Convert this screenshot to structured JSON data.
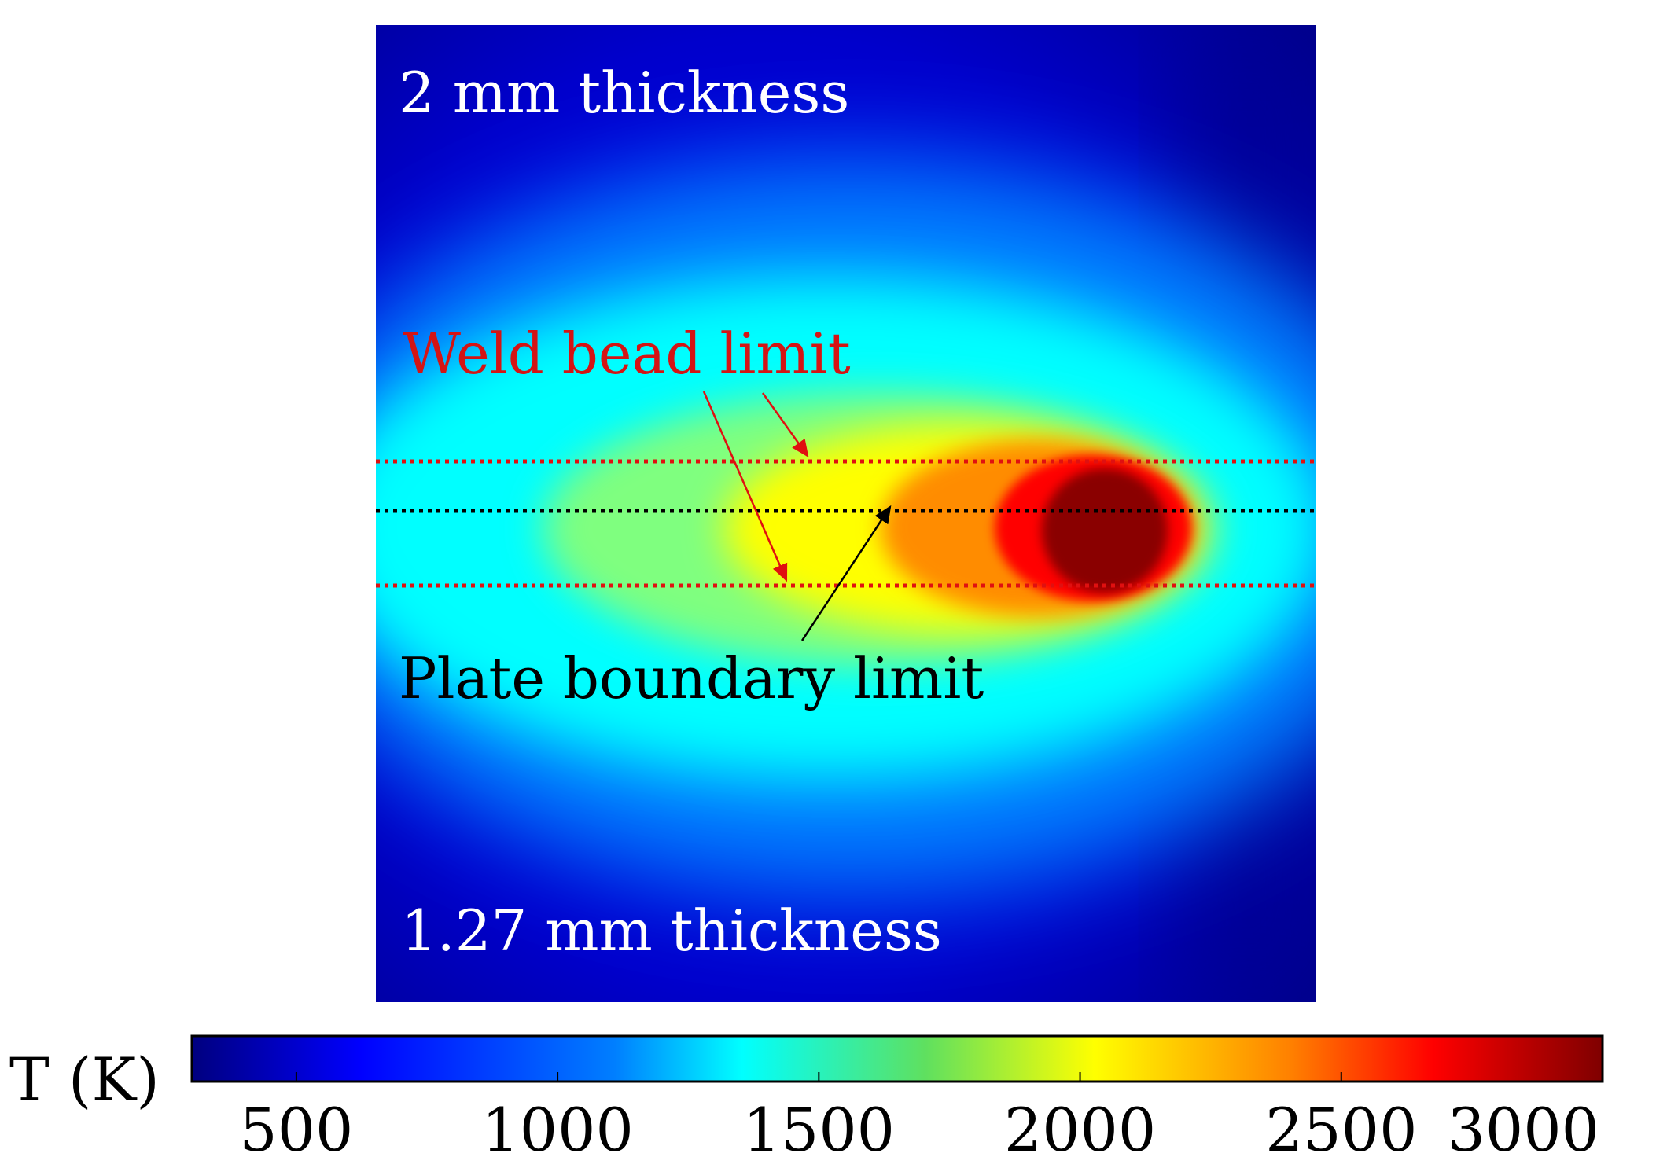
{
  "chart_data": {
    "type": "heatmap",
    "title": "",
    "colorbar": {
      "label": "T (K)",
      "min": 300,
      "max": 3000,
      "ticks": [
        500,
        1000,
        1500,
        2000,
        2500,
        3000
      ],
      "tick_labels": [
        "500",
        "1000",
        "1500",
        "2000",
        "2500",
        "3000"
      ],
      "colormap": "jet",
      "orientation": "horizontal",
      "placement": "bottom"
    },
    "field": {
      "description_values": {
        "ambient_T": 300,
        "peak_T": 3000
      }
    },
    "annotations": {
      "top_text": "2 mm thickness",
      "bottom_text": "1.27 mm thickness",
      "weld_bead_label": "Weld bead limit",
      "plate_boundary_label": "Plate boundary limit"
    },
    "lines": [
      {
        "name": "upper-weld-bead-limit",
        "color": "#e01010",
        "style": "dotted"
      },
      {
        "name": "plate-boundary-limit",
        "color": "#000000",
        "style": "dotted"
      },
      {
        "name": "lower-weld-bead-limit",
        "color": "#e01010",
        "style": "dotted"
      }
    ]
  },
  "colors": {
    "weld_bead": "#d41414",
    "plate_boundary": "#000000",
    "jet_stops": [
      "#00007f",
      "#0000ff",
      "#007fff",
      "#00ffff",
      "#7fff7f",
      "#ffff00",
      "#ff7f00",
      "#ff0000",
      "#7f0000"
    ]
  }
}
